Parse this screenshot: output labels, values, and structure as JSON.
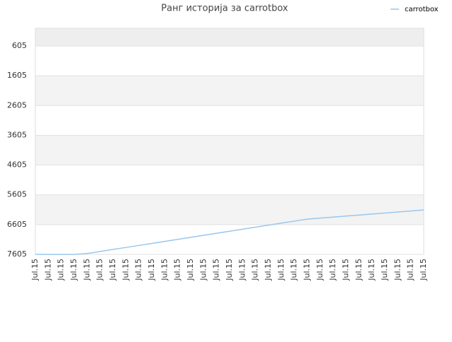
{
  "chart_data": {
    "type": "line",
    "title": "Ранг историја за carrotbox",
    "categories": [
      "Jul.15",
      "Jul.15",
      "Jul.15",
      "Jul.15",
      "Jul.15",
      "Jul.15",
      "Jul.15",
      "Jul.15",
      "Jul.15",
      "Jul.15",
      "Jul.15",
      "Jul.15",
      "Jul.15",
      "Jul.15",
      "Jul.15",
      "Jul.15",
      "Jul.15",
      "Jul.15",
      "Jul.15",
      "Jul.15",
      "Jul.15",
      "Jul.15",
      "Jul.15",
      "Jul.15",
      "Jul.15",
      "Jul.15",
      "Jul.15",
      "Jul.15",
      "Jul.15",
      "Jul.15",
      "Jul.15"
    ],
    "series": [
      {
        "name": "carrotbox",
        "color": "#99c7ee",
        "values": [
          7605,
          7605,
          7605,
          7605,
          7576,
          7508,
          7440,
          7372,
          7304,
          7236,
          7168,
          7100,
          7032,
          6964,
          6896,
          6828,
          6760,
          6692,
          6624,
          6556,
          6488,
          6420,
          6386,
          6352,
          6318,
          6284,
          6250,
          6216,
          6182,
          6148,
          6114
        ]
      }
    ],
    "ylim": [
      7605,
      10
    ],
    "yticks": [
      605,
      1605,
      2605,
      3605,
      4605,
      5605,
      6605,
      7605
    ],
    "grid": true,
    "legend": "top-right"
  }
}
